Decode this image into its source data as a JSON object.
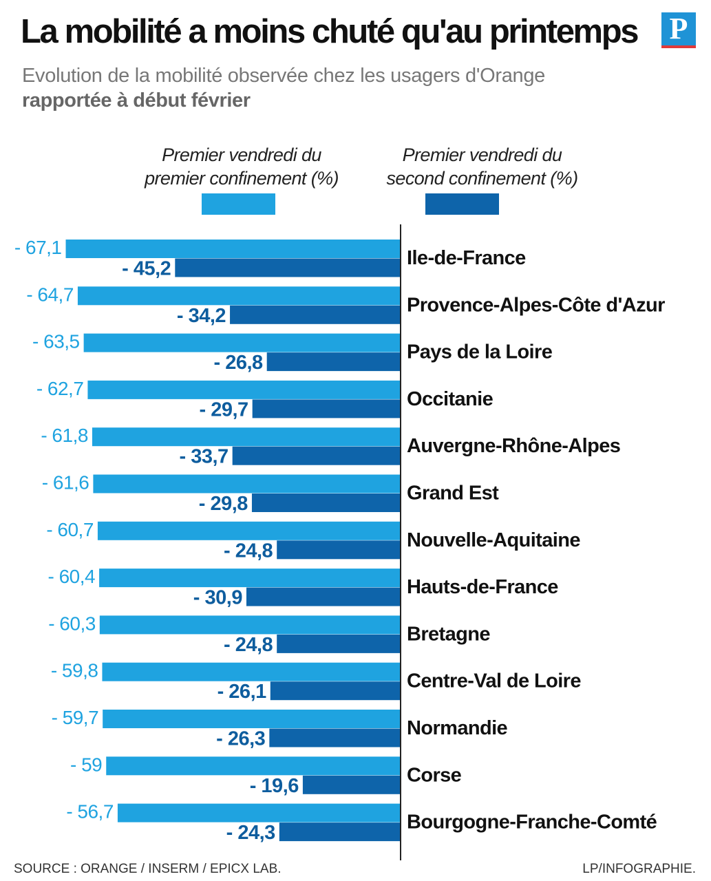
{
  "header": {
    "title": "La mobilité a moins chuté qu'au printemps",
    "subtitle": "Evolution de la mobilité observée chez les usagers d'Orange",
    "subtitle_bold": "rapportée à début février",
    "logo_letter": "P"
  },
  "legend": {
    "series1_line1": "Premier vendredi du",
    "series1_line2": "premier confinement (%)",
    "series2_line1": "Premier vendredi du",
    "series2_line2": "second confinement (%)"
  },
  "footer": {
    "source": "SOURCE : ORANGE / INSERM / EPICX LAB.",
    "credit": "LP/INFOGRAPHIE."
  },
  "colors": {
    "series1": "#1fa3e0",
    "series2": "#0e64aa",
    "label1": "#1fa3e0",
    "label2": "#0e5d9e",
    "category": "#111111",
    "axis": "#222222"
  },
  "chart_data": {
    "type": "bar",
    "orientation": "horizontal",
    "title": "La mobilité a moins chuté qu'au printemps",
    "categories": [
      "Ile-de-France",
      "Provence-Alpes-Côte d'Azur",
      "Pays de la Loire",
      "Occitanie",
      "Auvergne-Rhône-Alpes",
      "Grand Est",
      "Nouvelle-Aquitaine",
      "Hauts-de-France",
      "Bretagne",
      "Centre-Val de Loire",
      "Normandie",
      "Corse",
      "Bourgogne-Franche-Comté"
    ],
    "series": [
      {
        "name": "Premier vendredi du premier confinement (%)",
        "values": [
          -67.1,
          -64.7,
          -63.5,
          -62.7,
          -61.8,
          -61.6,
          -60.7,
          -60.4,
          -60.3,
          -59.8,
          -59.7,
          -59,
          -56.7
        ],
        "labels": [
          "- 67,1",
          "- 64,7",
          "- 63,5",
          "- 62,7",
          "- 61,8",
          "- 61,6",
          "- 60,7",
          "- 60,4",
          "- 60,3",
          "- 59,8",
          "- 59,7",
          "- 59",
          "- 56,7"
        ]
      },
      {
        "name": "Premier vendredi du second confinement (%)",
        "values": [
          -45.2,
          -34.2,
          -26.8,
          -29.7,
          -33.7,
          -29.8,
          -24.8,
          -30.9,
          -24.8,
          -26.1,
          -26.3,
          -19.6,
          -24.3
        ],
        "labels": [
          "- 45,2",
          "- 34,2",
          "- 26,8",
          "- 29,7",
          "- 33,7",
          "- 29,8",
          "- 24,8",
          "- 30,9",
          "- 24,8",
          "- 26,1",
          "- 26,3",
          "- 19,6",
          "- 24,3"
        ]
      }
    ],
    "xlim": [
      -70,
      0
    ],
    "xlabel": "",
    "ylabel": ""
  }
}
